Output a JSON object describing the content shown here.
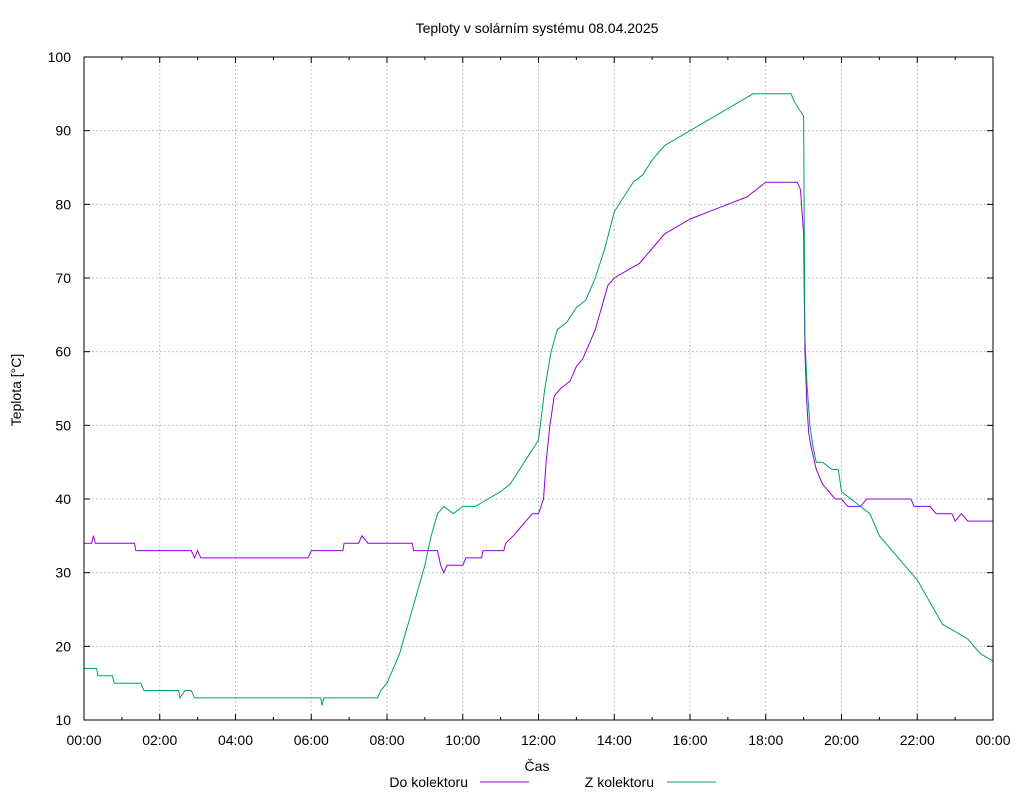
{
  "chart_data": {
    "type": "line",
    "title": "Teploty v solárním systému 08.04.2025",
    "xlabel": "Čas",
    "ylabel": "Teplota [°C]",
    "xlim": [
      "00:00",
      "24:00"
    ],
    "ylim": [
      10,
      100
    ],
    "xticks": [
      "00:00",
      "02:00",
      "04:00",
      "06:00",
      "08:00",
      "10:00",
      "12:00",
      "14:00",
      "16:00",
      "18:00",
      "20:00",
      "22:00",
      "00:00"
    ],
    "yticks": [
      "10",
      "20",
      "30",
      "40",
      "50",
      "60",
      "70",
      "80",
      "90",
      "100"
    ],
    "grid": true,
    "legend_position": "bottom",
    "series": [
      {
        "name": "Do kolektoru",
        "color": "#9400d3",
        "points": [
          [
            "00:00",
            34
          ],
          [
            "00:12",
            34
          ],
          [
            "00:15",
            35
          ],
          [
            "00:18",
            34
          ],
          [
            "01:20",
            34
          ],
          [
            "01:22",
            33
          ],
          [
            "02:50",
            33
          ],
          [
            "02:55",
            32
          ],
          [
            "03:00",
            33
          ],
          [
            "03:05",
            32
          ],
          [
            "05:55",
            32
          ],
          [
            "06:00",
            33
          ],
          [
            "06:50",
            33
          ],
          [
            "06:52",
            34
          ],
          [
            "07:15",
            34
          ],
          [
            "07:20",
            35
          ],
          [
            "07:30",
            34
          ],
          [
            "07:50",
            34
          ],
          [
            "08:40",
            34
          ],
          [
            "08:42",
            33
          ],
          [
            "09:20",
            33
          ],
          [
            "09:25",
            31
          ],
          [
            "09:30",
            30
          ],
          [
            "09:35",
            31
          ],
          [
            "10:00",
            31
          ],
          [
            "10:05",
            32
          ],
          [
            "10:30",
            32
          ],
          [
            "10:32",
            33
          ],
          [
            "11:05",
            33
          ],
          [
            "11:08",
            34
          ],
          [
            "11:20",
            35
          ],
          [
            "11:30",
            36
          ],
          [
            "11:40",
            37
          ],
          [
            "11:50",
            38
          ],
          [
            "12:00",
            38
          ],
          [
            "12:08",
            40
          ],
          [
            "12:12",
            45
          ],
          [
            "12:18",
            50
          ],
          [
            "12:25",
            54
          ],
          [
            "12:35",
            55
          ],
          [
            "12:50",
            56
          ],
          [
            "13:00",
            58
          ],
          [
            "13:10",
            59
          ],
          [
            "13:20",
            61
          ],
          [
            "13:30",
            63
          ],
          [
            "13:40",
            66
          ],
          [
            "13:50",
            69
          ],
          [
            "14:00",
            70
          ],
          [
            "14:20",
            71
          ],
          [
            "14:40",
            72
          ],
          [
            "15:00",
            74
          ],
          [
            "15:20",
            76
          ],
          [
            "15:40",
            77
          ],
          [
            "16:00",
            78
          ],
          [
            "16:30",
            79
          ],
          [
            "17:00",
            80
          ],
          [
            "17:30",
            81
          ],
          [
            "17:45",
            82
          ],
          [
            "18:00",
            83
          ],
          [
            "18:50",
            83
          ],
          [
            "18:55",
            82
          ],
          [
            "19:00",
            76
          ],
          [
            "19:02",
            60
          ],
          [
            "19:05",
            53
          ],
          [
            "19:08",
            49
          ],
          [
            "19:12",
            47
          ],
          [
            "19:20",
            44
          ],
          [
            "19:30",
            42
          ],
          [
            "19:40",
            41
          ],
          [
            "19:50",
            40
          ],
          [
            "20:00",
            40
          ],
          [
            "20:10",
            39
          ],
          [
            "20:30",
            39
          ],
          [
            "20:40",
            40
          ],
          [
            "21:00",
            40
          ],
          [
            "21:50",
            40
          ],
          [
            "21:55",
            39
          ],
          [
            "22:20",
            39
          ],
          [
            "22:30",
            38
          ],
          [
            "22:55",
            38
          ],
          [
            "23:00",
            37
          ],
          [
            "23:10",
            38
          ],
          [
            "23:20",
            37
          ],
          [
            "24:00",
            37
          ]
        ]
      },
      {
        "name": "Z kolektoru",
        "color": "#009e73",
        "points": [
          [
            "00:00",
            17
          ],
          [
            "00:20",
            17
          ],
          [
            "00:22",
            16
          ],
          [
            "00:45",
            16
          ],
          [
            "00:48",
            15
          ],
          [
            "01:30",
            15
          ],
          [
            "01:35",
            14
          ],
          [
            "02:30",
            14
          ],
          [
            "02:32",
            13
          ],
          [
            "02:40",
            14
          ],
          [
            "02:50",
            14
          ],
          [
            "02:55",
            13
          ],
          [
            "06:15",
            13
          ],
          [
            "06:17",
            12
          ],
          [
            "06:20",
            13
          ],
          [
            "07:45",
            13
          ],
          [
            "07:50",
            14
          ],
          [
            "08:00",
            15
          ],
          [
            "08:10",
            17
          ],
          [
            "08:20",
            19
          ],
          [
            "08:30",
            22
          ],
          [
            "08:40",
            25
          ],
          [
            "08:50",
            28
          ],
          [
            "09:00",
            31
          ],
          [
            "09:10",
            35
          ],
          [
            "09:20",
            38
          ],
          [
            "09:30",
            39
          ],
          [
            "09:45",
            38
          ],
          [
            "10:00",
            39
          ],
          [
            "10:20",
            39
          ],
          [
            "10:40",
            40
          ],
          [
            "11:00",
            41
          ],
          [
            "11:15",
            42
          ],
          [
            "11:30",
            44
          ],
          [
            "11:45",
            46
          ],
          [
            "12:00",
            48
          ],
          [
            "12:10",
            55
          ],
          [
            "12:20",
            60
          ],
          [
            "12:30",
            63
          ],
          [
            "12:45",
            64
          ],
          [
            "13:00",
            66
          ],
          [
            "13:15",
            67
          ],
          [
            "13:30",
            70
          ],
          [
            "13:45",
            74
          ],
          [
            "14:00",
            79
          ],
          [
            "14:15",
            81
          ],
          [
            "14:30",
            83
          ],
          [
            "14:45",
            84
          ],
          [
            "15:00",
            86
          ],
          [
            "15:20",
            88
          ],
          [
            "15:40",
            89
          ],
          [
            "16:00",
            90
          ],
          [
            "16:20",
            91
          ],
          [
            "16:40",
            92
          ],
          [
            "17:00",
            93
          ],
          [
            "17:20",
            94
          ],
          [
            "17:40",
            95
          ],
          [
            "18:00",
            95
          ],
          [
            "18:40",
            95
          ],
          [
            "18:45",
            94
          ],
          [
            "18:52",
            93
          ],
          [
            "19:00",
            92
          ],
          [
            "19:02",
            62
          ],
          [
            "19:05",
            56
          ],
          [
            "19:10",
            50
          ],
          [
            "19:15",
            47
          ],
          [
            "19:20",
            45
          ],
          [
            "19:30",
            45
          ],
          [
            "19:45",
            44
          ],
          [
            "19:55",
            44
          ],
          [
            "20:00",
            41
          ],
          [
            "20:15",
            40
          ],
          [
            "20:30",
            39
          ],
          [
            "20:45",
            38
          ],
          [
            "21:00",
            35
          ],
          [
            "21:20",
            33
          ],
          [
            "21:40",
            31
          ],
          [
            "22:00",
            29
          ],
          [
            "22:20",
            26
          ],
          [
            "22:40",
            23
          ],
          [
            "23:00",
            22
          ],
          [
            "23:20",
            21
          ],
          [
            "23:40",
            19
          ],
          [
            "24:00",
            18
          ]
        ]
      }
    ]
  }
}
